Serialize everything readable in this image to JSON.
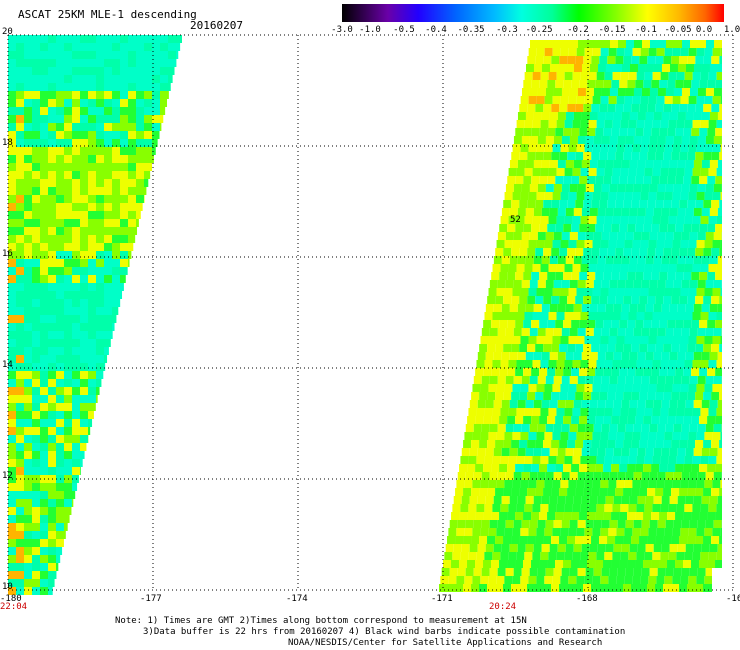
{
  "header": {
    "title": "ASCAT 25KM MLE-1 descending",
    "date": "20160207"
  },
  "colorbar": {
    "labels": [
      "-3.0",
      "-1.0",
      "-0.5",
      "-0.4",
      "-0.35",
      "-0.3",
      "-0.25",
      "-0.2",
      "-0.15",
      "-0.1",
      "-0.05",
      "0.0",
      "1.0"
    ],
    "colors": [
      "#000000",
      "#6a00a8",
      "#2200ff",
      "#0066ff",
      "#00bbff",
      "#00ffe0",
      "#00ff99",
      "#00ff00",
      "#88ff00",
      "#ffff00",
      "#ffbb00",
      "#ff6600",
      "#ff0000"
    ]
  },
  "map": {
    "lat_labels": [
      "20",
      "18",
      "16",
      "14",
      "12",
      "10"
    ],
    "lon_labels": [
      "-180",
      "-177",
      "-174",
      "-171",
      "-168",
      "-16"
    ],
    "time_labels": [
      "22:04",
      "20:24"
    ],
    "swath_colors": {
      "cyan": "#00ffc8",
      "aqua": "#00ffaa",
      "green": "#22ff33",
      "lime": "#88ff00",
      "yellow": "#eeff00",
      "orange": "#ffb400"
    },
    "marker_label": "52"
  },
  "notes": {
    "line1": "Note: 1) Times are GMT 2)Times along bottom correspond to measurement at 15N",
    "line2": "3)Data buffer is 22 hrs from 20160207 4) Black wind barbs indicate possible contamination",
    "line3": "NOAA/NESDIS/Center for Satellite Applications and Research"
  }
}
